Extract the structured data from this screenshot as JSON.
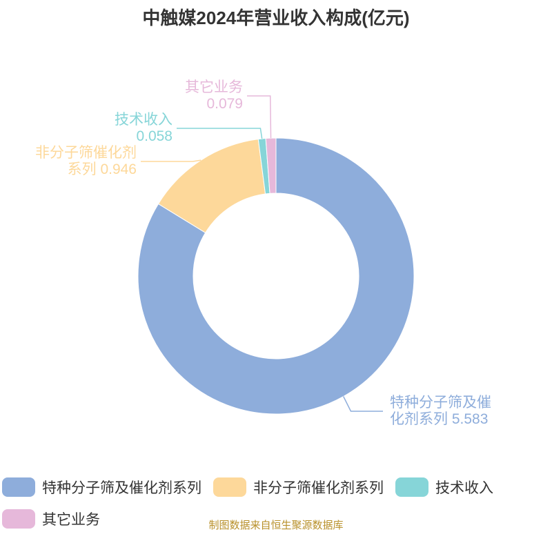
{
  "chart_data": {
    "type": "donut",
    "title": "中触媒2024年营业收入构成(亿元)",
    "categories": [
      "特种分子筛及催化剂系列",
      "非分子筛催化剂系列",
      "技术收入",
      "其它业务"
    ],
    "values": [
      5.583,
      0.946,
      0.058,
      0.079
    ],
    "colors": [
      "#8eaddb",
      "#fdd89a",
      "#86d5d8",
      "#e6b8da"
    ],
    "source": "制图数据来自恒生聚源数据库"
  }
}
